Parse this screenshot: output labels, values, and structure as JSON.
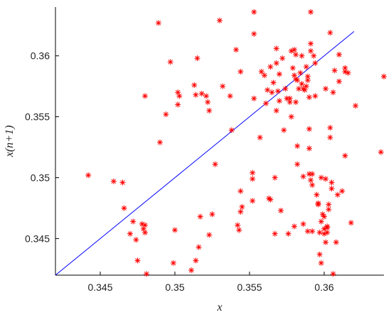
{
  "chart_data": {
    "type": "scatter",
    "xlabel": "x",
    "ylabel": "x(n+1)",
    "xlim": [
      0.342,
      0.364
    ],
    "ylim": [
      0.342,
      0.364
    ],
    "xticks": [
      "0.345",
      "0.35",
      "0.355",
      "0.36"
    ],
    "yticks": [
      "0.345",
      "0.35",
      "0.355",
      "0.36"
    ],
    "grid": false,
    "colors": {
      "points": "#ff0000",
      "line": "#0000ff",
      "axis": "#000000"
    },
    "marker": "asterisk",
    "reference_line": {
      "x": [
        0.342,
        0.362
      ],
      "y": [
        0.342,
        0.362
      ]
    },
    "points": [
      [
        0.3442,
        0.3502
      ],
      [
        0.3459,
        0.3497
      ],
      [
        0.3465,
        0.3496
      ],
      [
        0.3466,
        0.3475
      ],
      [
        0.3472,
        0.3464
      ],
      [
        0.347,
        0.3454
      ],
      [
        0.3474,
        0.3449
      ],
      [
        0.3478,
        0.3462
      ],
      [
        0.3479,
        0.3458
      ],
      [
        0.348,
        0.3461
      ],
      [
        0.348,
        0.3455
      ],
      [
        0.3475,
        0.3432
      ],
      [
        0.3481,
        0.3421
      ],
      [
        0.348,
        0.3567
      ],
      [
        0.3489,
        0.3627
      ],
      [
        0.349,
        0.3529
      ],
      [
        0.3494,
        0.3552
      ],
      [
        0.3497,
        0.3595
      ],
      [
        0.3499,
        0.343
      ],
      [
        0.35,
        0.3457
      ],
      [
        0.3502,
        0.356
      ],
      [
        0.3502,
        0.357
      ],
      [
        0.3503,
        0.3567
      ],
      [
        0.3511,
        0.3424
      ],
      [
        0.3513,
        0.3576
      ],
      [
        0.3514,
        0.3568
      ],
      [
        0.3514,
        0.3432
      ],
      [
        0.3515,
        0.3598
      ],
      [
        0.3516,
        0.3443
      ],
      [
        0.3517,
        0.3468
      ],
      [
        0.3518,
        0.3569
      ],
      [
        0.3521,
        0.3567
      ],
      [
        0.3522,
        0.3562
      ],
      [
        0.3523,
        0.3555
      ],
      [
        0.3523,
        0.3453
      ],
      [
        0.3525,
        0.347
      ],
      [
        0.3527,
        0.3511
      ],
      [
        0.353,
        0.3629
      ],
      [
        0.3532,
        0.3575
      ],
      [
        0.3537,
        0.3567
      ],
      [
        0.3538,
        0.3539
      ],
      [
        0.3541,
        0.3605
      ],
      [
        0.3542,
        0.3461
      ],
      [
        0.3543,
        0.3457
      ],
      [
        0.3544,
        0.3489
      ],
      [
        0.3544,
        0.3587
      ],
      [
        0.3544,
        0.3472
      ],
      [
        0.3545,
        0.3476
      ],
      [
        0.3552,
        0.3504
      ],
      [
        0.3552,
        0.3499
      ],
      [
        0.3552,
        0.3481
      ],
      [
        0.3553,
        0.3636
      ],
      [
        0.3553,
        0.3618
      ],
      [
        0.3553,
        0.3565
      ],
      [
        0.3557,
        0.3533
      ],
      [
        0.3558,
        0.3587
      ],
      [
        0.356,
        0.3584
      ],
      [
        0.3561,
        0.3561
      ],
      [
        0.3562,
        0.3572
      ],
      [
        0.3563,
        0.3483
      ],
      [
        0.3564,
        0.3482
      ],
      [
        0.3564,
        0.3591
      ],
      [
        0.3565,
        0.357
      ],
      [
        0.3566,
        0.3578
      ],
      [
        0.3567,
        0.3454
      ],
      [
        0.3567,
        0.35
      ],
      [
        0.3568,
        0.3606
      ],
      [
        0.3568,
        0.3555
      ],
      [
        0.3568,
        0.3594
      ],
      [
        0.3569,
        0.3571
      ],
      [
        0.357,
        0.3585
      ],
      [
        0.357,
        0.3563
      ],
      [
        0.3571,
        0.3473
      ],
      [
        0.3572,
        0.3598
      ],
      [
        0.3573,
        0.3539
      ],
      [
        0.3574,
        0.3573
      ],
      [
        0.3575,
        0.3565
      ],
      [
        0.3576,
        0.3454
      ],
      [
        0.3577,
        0.3562
      ],
      [
        0.3577,
        0.3565
      ],
      [
        0.3578,
        0.3604
      ],
      [
        0.3578,
        0.355
      ],
      [
        0.3579,
        0.359
      ],
      [
        0.358,
        0.3605
      ],
      [
        0.358,
        0.3584
      ],
      [
        0.358,
        0.346
      ],
      [
        0.3581,
        0.3601
      ],
      [
        0.3581,
        0.3581
      ],
      [
        0.3581,
        0.3562
      ],
      [
        0.3582,
        0.3526
      ],
      [
        0.3582,
        0.3511
      ],
      [
        0.3582,
        0.358
      ],
      [
        0.3583,
        0.3573
      ],
      [
        0.3584,
        0.3586
      ],
      [
        0.3585,
        0.36
      ],
      [
        0.3585,
        0.3577
      ],
      [
        0.3586,
        0.3462
      ],
      [
        0.3586,
        0.3501
      ],
      [
        0.3586,
        0.3573
      ],
      [
        0.3587,
        0.3572
      ],
      [
        0.3588,
        0.3591
      ],
      [
        0.3588,
        0.3575
      ],
      [
        0.3589,
        0.358
      ],
      [
        0.3589,
        0.3583
      ],
      [
        0.3589,
        0.3456
      ],
      [
        0.359,
        0.3503
      ],
      [
        0.359,
        0.354
      ],
      [
        0.359,
        0.3524
      ],
      [
        0.359,
        0.3566
      ],
      [
        0.3591,
        0.3604
      ],
      [
        0.3591,
        0.361
      ],
      [
        0.3591,
        0.3636
      ],
      [
        0.3591,
        0.3498
      ],
      [
        0.3592,
        0.3503
      ],
      [
        0.3592,
        0.3494
      ],
      [
        0.3592,
        0.3456
      ],
      [
        0.3593,
        0.36
      ],
      [
        0.3594,
        0.3594
      ],
      [
        0.3594,
        0.3567
      ],
      [
        0.3595,
        0.3486
      ],
      [
        0.3596,
        0.3478
      ],
      [
        0.3596,
        0.3479
      ],
      [
        0.3597,
        0.3455
      ],
      [
        0.3597,
        0.3437
      ],
      [
        0.3598,
        0.3464
      ],
      [
        0.3598,
        0.343
      ],
      [
        0.3598,
        0.35
      ],
      [
        0.3599,
        0.347
      ],
      [
        0.36,
        0.3468
      ],
      [
        0.36,
        0.3458
      ],
      [
        0.36,
        0.3454
      ],
      [
        0.3601,
        0.3573
      ],
      [
        0.3601,
        0.3499
      ],
      [
        0.3601,
        0.3447
      ],
      [
        0.3602,
        0.346
      ],
      [
        0.3602,
        0.3455
      ],
      [
        0.3602,
        0.3459
      ],
      [
        0.3603,
        0.3474
      ],
      [
        0.3603,
        0.3478
      ],
      [
        0.3604,
        0.3541
      ],
      [
        0.3604,
        0.3619
      ],
      [
        0.3604,
        0.3533
      ],
      [
        0.3605,
        0.3496
      ],
      [
        0.3605,
        0.3491
      ],
      [
        0.3606,
        0.357
      ],
      [
        0.3606,
        0.3421
      ],
      [
        0.3607,
        0.3588
      ],
      [
        0.3608,
        0.3447
      ],
      [
        0.3609,
        0.3486
      ],
      [
        0.361,
        0.3579
      ],
      [
        0.361,
        0.3601
      ],
      [
        0.3612,
        0.3489
      ],
      [
        0.3614,
        0.359
      ],
      [
        0.3614,
        0.3587
      ],
      [
        0.3614,
        0.3518
      ],
      [
        0.3616,
        0.3586
      ],
      [
        0.3618,
        0.3463
      ],
      [
        0.3621,
        0.3559
      ],
      [
        0.3638,
        0.3521
      ],
      [
        0.364,
        0.3583
      ]
    ]
  }
}
